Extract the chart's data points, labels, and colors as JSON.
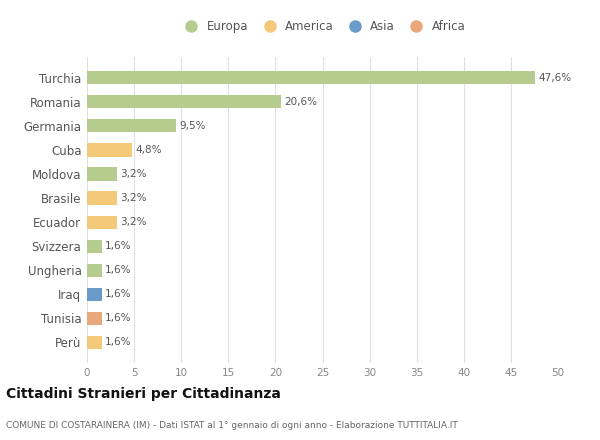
{
  "categories": [
    "Turchia",
    "Romania",
    "Germania",
    "Cuba",
    "Moldova",
    "Brasile",
    "Ecuador",
    "Svizzera",
    "Ungheria",
    "Iraq",
    "Tunisia",
    "Perù"
  ],
  "values": [
    47.6,
    20.6,
    9.5,
    4.8,
    3.2,
    3.2,
    3.2,
    1.6,
    1.6,
    1.6,
    1.6,
    1.6
  ],
  "labels": [
    "47,6%",
    "20,6%",
    "9,5%",
    "4,8%",
    "3,2%",
    "3,2%",
    "3,2%",
    "1,6%",
    "1,6%",
    "1,6%",
    "1,6%",
    "1,6%"
  ],
  "continents": [
    "Europa",
    "Europa",
    "Europa",
    "America",
    "Europa",
    "America",
    "America",
    "Europa",
    "Europa",
    "Asia",
    "Africa",
    "America"
  ],
  "continent_colors": {
    "Europa": "#b5cc8e",
    "America": "#f5c97a",
    "Asia": "#6b9bc9",
    "Africa": "#e8a87c"
  },
  "legend_order": [
    "Europa",
    "America",
    "Asia",
    "Africa"
  ],
  "title": "Cittadini Stranieri per Cittadinanza",
  "subtitle": "COMUNE DI COSTARAINERA (IM) - Dati ISTAT al 1° gennaio di ogni anno - Elaborazione TUTTITALIA.IT",
  "xlim": [
    0,
    50
  ],
  "xticks": [
    0,
    5,
    10,
    15,
    20,
    25,
    30,
    35,
    40,
    45,
    50
  ],
  "background_color": "#ffffff",
  "grid_color": "#e0e0e0"
}
